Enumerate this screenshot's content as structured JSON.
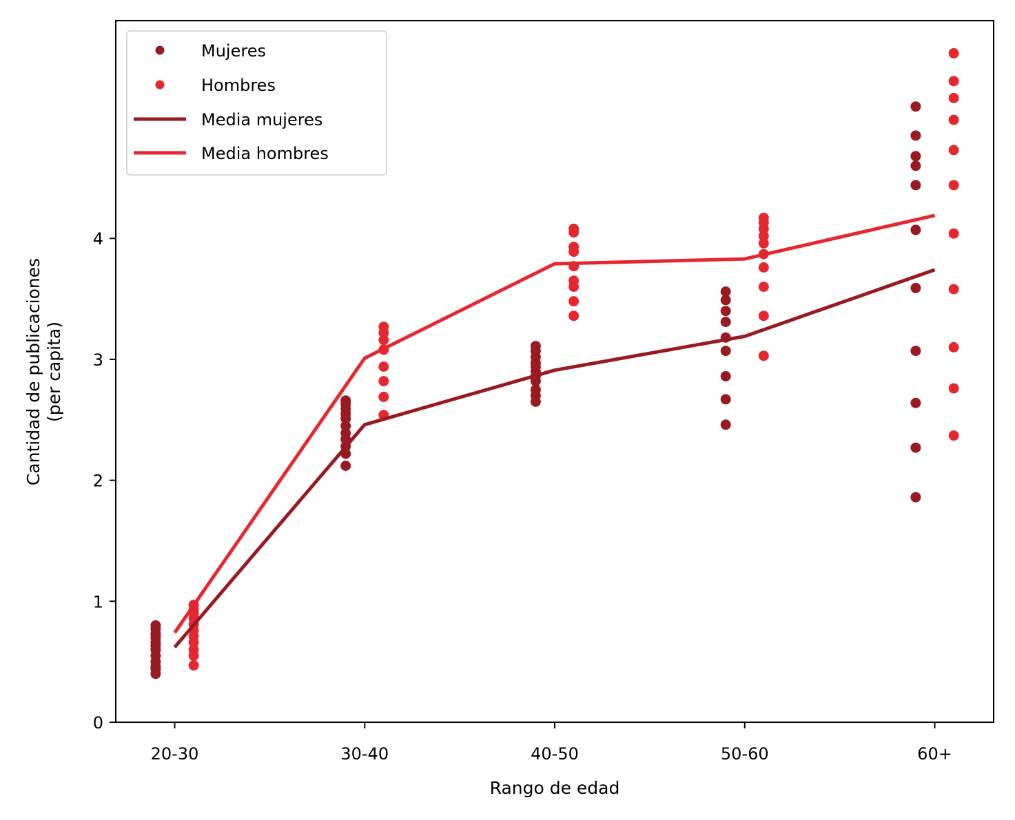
{
  "chart_data": {
    "type": "scatter",
    "xlabel": "Rango de edad",
    "ylabel": [
      "Cantidad de publicaciones",
      "(per capita)"
    ],
    "categories": [
      "20-30",
      "30-40",
      "40-50",
      "50-60",
      "60+"
    ],
    "ylim": [
      0,
      5.8
    ],
    "yticks": [
      0,
      1,
      2,
      3,
      4
    ],
    "grid": false,
    "legend_position": "top-left",
    "legend": [
      "Mujeres",
      "Hombres",
      "Media mujeres",
      "Media hombres"
    ],
    "colors": {
      "mujeres": "#981B22",
      "hombres": "#E5282F"
    },
    "offsets": {
      "mujeres": -0.1,
      "hombres": 0.1
    },
    "points": {
      "mujeres": [
        [
          0.4,
          0.44,
          0.46,
          0.5,
          0.55,
          0.6,
          0.63,
          0.66,
          0.7,
          0.73,
          0.77,
          0.8
        ],
        [
          2.12,
          2.22,
          2.28,
          2.34,
          2.39,
          2.45,
          2.51,
          2.55,
          2.59,
          2.63,
          2.66
        ],
        [
          2.65,
          2.7,
          2.75,
          2.82,
          2.86,
          2.9,
          2.94,
          2.97,
          3.02,
          3.07,
          3.11
        ],
        [
          2.46,
          2.67,
          2.86,
          3.07,
          3.18,
          3.31,
          3.4,
          3.49,
          3.56
        ],
        [
          1.86,
          2.27,
          2.64,
          3.07,
          3.59,
          4.07,
          4.44,
          4.6,
          4.68,
          4.85,
          5.09
        ]
      ],
      "hombres": [
        [
          0.47,
          0.55,
          0.6,
          0.66,
          0.71,
          0.76,
          0.81,
          0.86,
          0.9,
          0.93,
          0.97
        ],
        [
          2.54,
          2.69,
          2.82,
          2.94,
          3.08,
          3.16,
          3.22,
          3.27
        ],
        [
          3.36,
          3.48,
          3.6,
          3.65,
          3.77,
          3.89,
          3.93,
          4.05,
          4.08
        ],
        [
          3.03,
          3.36,
          3.6,
          3.76,
          3.87,
          3.96,
          4.02,
          4.08,
          4.13,
          4.17
        ],
        [
          2.37,
          2.76,
          3.1,
          3.58,
          4.04,
          4.44,
          4.73,
          4.98,
          5.16,
          5.3,
          5.53
        ]
      ]
    },
    "series": [
      {
        "name": "Media mujeres",
        "values": [
          0.62,
          2.46,
          2.91,
          3.19,
          3.74
        ]
      },
      {
        "name": "Media hombres",
        "values": [
          0.74,
          3.01,
          3.79,
          3.83,
          4.19
        ]
      }
    ]
  }
}
